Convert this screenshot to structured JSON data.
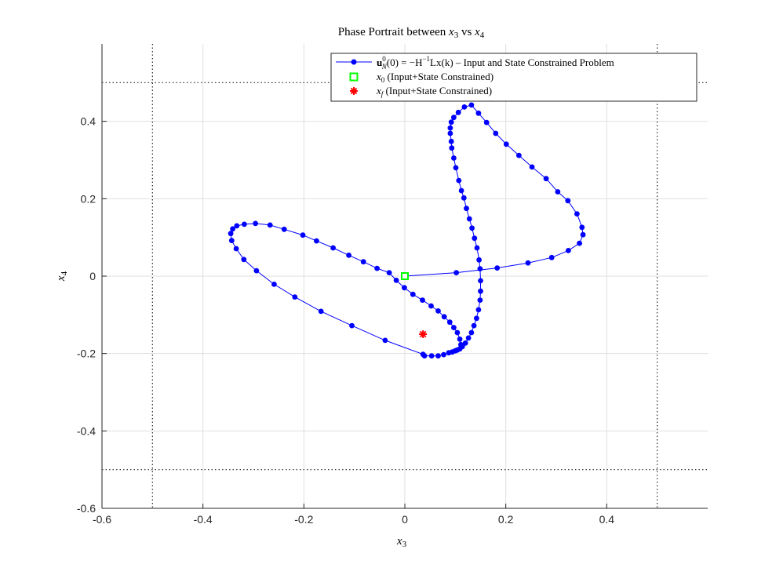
{
  "chart_data": {
    "type": "line",
    "title": "Phase Portrait between x_3 vs x_4",
    "title_parts": {
      "prefix": "Phase Portrait between ",
      "a": "x",
      "a_sub": "3",
      "mid": " vs ",
      "b": "x",
      "b_sub": "4"
    },
    "xlabel": {
      "base": "x",
      "sub": "3"
    },
    "ylabel": {
      "base": "x",
      "sub": "4"
    },
    "xlim": [
      -0.6,
      0.6
    ],
    "ylim": [
      -0.6,
      0.6
    ],
    "xticks": [
      -0.6,
      -0.4,
      -0.2,
      0,
      0.2,
      0.4
    ],
    "xtick_labels": [
      "-0.6",
      "-0.4",
      "-0.2",
      "0",
      "0.2",
      "0.4"
    ],
    "yticks": [
      -0.6,
      -0.4,
      -0.2,
      0,
      0.2,
      0.4
    ],
    "ytick_labels": [
      "-0.6",
      "-0.4",
      "-0.2",
      "0",
      "0.2",
      "0.4"
    ],
    "grid": true,
    "legend_position": "top-right",
    "constraint_lines": {
      "x": [
        -0.5,
        0.5
      ],
      "y": [
        -0.5,
        0.5
      ]
    },
    "series": [
      {
        "name": "u_N^0(0) = -H^-1 Lx(k) - Input and State Constrained Problem",
        "color": "#0000ff",
        "marker": "circle",
        "points": [
          [
            0.0,
            0.0
          ],
          [
            0.102,
            0.009
          ],
          [
            0.183,
            0.021
          ],
          [
            0.244,
            0.034
          ],
          [
            0.291,
            0.048
          ],
          [
            0.324,
            0.066
          ],
          [
            0.346,
            0.085
          ],
          [
            0.353,
            0.107
          ],
          [
            0.351,
            0.126
          ],
          [
            0.341,
            0.161
          ],
          [
            0.323,
            0.195
          ],
          [
            0.303,
            0.218
          ],
          [
            0.28,
            0.252
          ],
          [
            0.252,
            0.282
          ],
          [
            0.226,
            0.312
          ],
          [
            0.201,
            0.341
          ],
          [
            0.18,
            0.369
          ],
          [
            0.162,
            0.397
          ],
          [
            0.146,
            0.421
          ],
          [
            0.132,
            0.442
          ],
          [
            0.118,
            0.437
          ],
          [
            0.106,
            0.423
          ],
          [
            0.097,
            0.41
          ],
          [
            0.092,
            0.398
          ],
          [
            0.09,
            0.383
          ],
          [
            0.09,
            0.369
          ],
          [
            0.092,
            0.348
          ],
          [
            0.093,
            0.331
          ],
          [
            0.097,
            0.305
          ],
          [
            0.101,
            0.28
          ],
          [
            0.107,
            0.247
          ],
          [
            0.112,
            0.221
          ],
          [
            0.117,
            0.202
          ],
          [
            0.122,
            0.175
          ],
          [
            0.128,
            0.148
          ],
          [
            0.133,
            0.124
          ],
          [
            0.138,
            0.098
          ],
          [
            0.143,
            0.073
          ],
          [
            0.147,
            0.042
          ],
          [
            0.149,
            0.019
          ],
          [
            0.15,
            -0.012
          ],
          [
            0.15,
            -0.039
          ],
          [
            0.149,
            -0.062
          ],
          [
            0.146,
            -0.087
          ],
          [
            0.142,
            -0.109
          ],
          [
            0.137,
            -0.128
          ],
          [
            0.132,
            -0.146
          ],
          [
            0.126,
            -0.16
          ],
          [
            0.12,
            -0.173
          ],
          [
            0.114,
            -0.182
          ],
          [
            0.109,
            -0.188
          ],
          [
            0.104,
            -0.191
          ],
          [
            0.1,
            -0.193
          ],
          [
            0.094,
            -0.196
          ],
          [
            0.087,
            -0.198
          ],
          [
            0.077,
            -0.203
          ],
          [
            0.066,
            -0.206
          ],
          [
            0.053,
            -0.206
          ],
          [
            0.039,
            -0.206
          ],
          [
            0.036,
            -0.202
          ],
          [
            -0.039,
            -0.166
          ],
          [
            -0.105,
            -0.128
          ],
          [
            -0.166,
            -0.091
          ],
          [
            -0.218,
            -0.054
          ],
          [
            -0.259,
            -0.021
          ],
          [
            -0.294,
            0.014
          ],
          [
            -0.319,
            0.043
          ],
          [
            -0.334,
            0.071
          ],
          [
            -0.343,
            0.092
          ],
          [
            -0.345,
            0.11
          ],
          [
            -0.341,
            0.122
          ],
          [
            -0.333,
            0.13
          ],
          [
            -0.318,
            0.134
          ],
          [
            -0.296,
            0.136
          ],
          [
            -0.267,
            0.132
          ],
          [
            -0.239,
            0.121
          ],
          [
            -0.202,
            0.106
          ],
          [
            -0.175,
            0.091
          ],
          [
            -0.142,
            0.073
          ],
          [
            -0.111,
            0.054
          ],
          [
            -0.082,
            0.037
          ],
          [
            -0.055,
            0.02
          ],
          [
            -0.031,
            0.009
          ],
          [
            -0.017,
            -0.011
          ],
          [
            -0.001,
            -0.03
          ],
          [
            0.016,
            -0.047
          ],
          [
            0.035,
            -0.062
          ],
          [
            0.052,
            -0.077
          ],
          [
            0.066,
            -0.09
          ],
          [
            0.078,
            -0.105
          ],
          [
            0.089,
            -0.119
          ],
          [
            0.097,
            -0.133
          ],
          [
            0.104,
            -0.146
          ],
          [
            0.109,
            -0.163
          ],
          [
            0.111,
            -0.177
          ]
        ]
      },
      {
        "name": "x_0 (Input+State Constrained)",
        "color": "#00ff00",
        "marker": "square",
        "points": [
          [
            0.0,
            0.0
          ]
        ]
      },
      {
        "name": "x_f (Input+State Constrained)",
        "color": "#ff0000",
        "marker": "asterisk",
        "points": [
          [
            0.036,
            -0.15
          ]
        ]
      }
    ],
    "legend_entries": [
      {
        "sym": "u",
        "sub": "N",
        "sup": "0",
        "text": "(0) = −H",
        "hsup": "−1",
        "rest": "Lx(k) – Input and State Constrained Problem"
      },
      {
        "sym": "x",
        "sub": "0",
        "text": " (Input+State Constrained)"
      },
      {
        "sym": "x",
        "sub": "f",
        "text": " (Input+State Constrained)"
      }
    ],
    "colors": {
      "line": "#0000ff",
      "x0": "#00ff00",
      "xf": "#ff0000",
      "grid": "#dfdfdf",
      "constraint": "#262626"
    }
  }
}
